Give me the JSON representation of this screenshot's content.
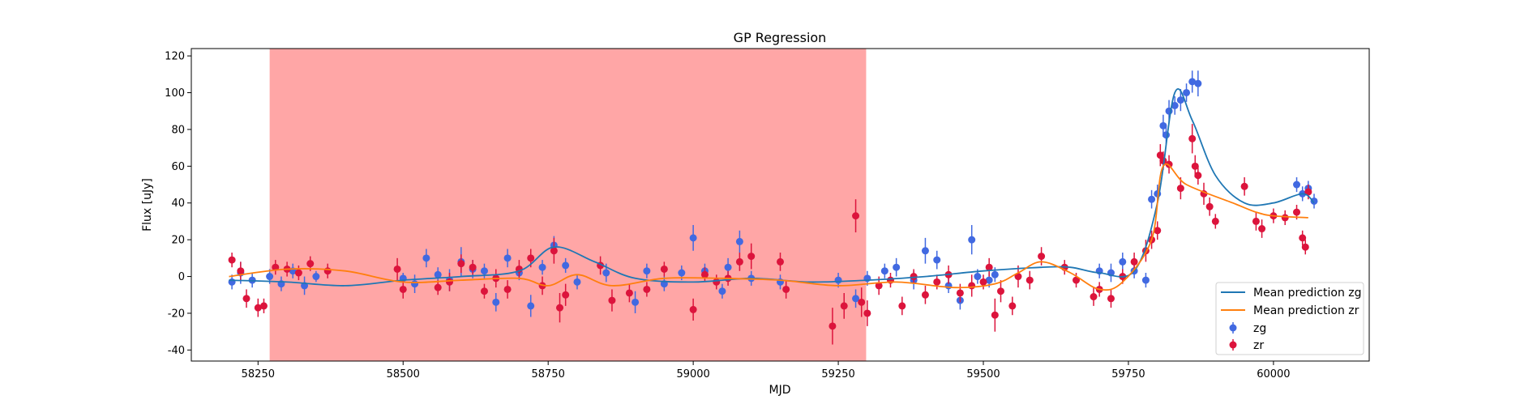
{
  "chart_data": {
    "type": "scatter",
    "title": "GP Regression",
    "xlabel": "MJD",
    "ylabel": "Flux [uJy]",
    "xlim": [
      58135,
      60165
    ],
    "ylim": [
      -46,
      124
    ],
    "xticks": [
      58250,
      58500,
      58750,
      59000,
      59250,
      59500,
      59750,
      60000
    ],
    "yticks": [
      -40,
      -20,
      0,
      20,
      40,
      60,
      80,
      100,
      120
    ],
    "grid": false,
    "legend_position": "lower right",
    "shaded_region": {
      "x_start": 58270,
      "x_end": 59298,
      "color": "#ff0000",
      "alpha": 0.35
    },
    "lines": [
      {
        "name": "Mean prediction zg",
        "color": "#1f77b4",
        "points": [
          [
            58200,
            -2
          ],
          [
            58300,
            -3
          ],
          [
            58400,
            -5
          ],
          [
            58500,
            -2
          ],
          [
            58600,
            0
          ],
          [
            58700,
            3
          ],
          [
            58760,
            16
          ],
          [
            58830,
            8
          ],
          [
            58900,
            -1
          ],
          [
            59000,
            -3
          ],
          [
            59100,
            -1
          ],
          [
            59200,
            -3
          ],
          [
            59300,
            -2
          ],
          [
            59400,
            0
          ],
          [
            59500,
            3
          ],
          [
            59600,
            5
          ],
          [
            59650,
            5
          ],
          [
            59700,
            2
          ],
          [
            59760,
            3
          ],
          [
            59800,
            40
          ],
          [
            59830,
            100
          ],
          [
            59860,
            85
          ],
          [
            59900,
            55
          ],
          [
            59950,
            40
          ],
          [
            60000,
            40
          ],
          [
            60050,
            45
          ],
          [
            60070,
            40
          ]
        ]
      },
      {
        "name": "Mean prediction zr",
        "color": "#ff7f0e",
        "points": [
          [
            58200,
            0
          ],
          [
            58300,
            4
          ],
          [
            58400,
            3
          ],
          [
            58500,
            -3
          ],
          [
            58600,
            -2
          ],
          [
            58700,
            -1
          ],
          [
            58750,
            -5
          ],
          [
            58800,
            1
          ],
          [
            58860,
            -5
          ],
          [
            58950,
            -1
          ],
          [
            59050,
            -1
          ],
          [
            59150,
            -2
          ],
          [
            59250,
            -5
          ],
          [
            59350,
            -3
          ],
          [
            59450,
            -6
          ],
          [
            59520,
            -4
          ],
          [
            59560,
            2
          ],
          [
            59600,
            8
          ],
          [
            59650,
            2
          ],
          [
            59700,
            -7
          ],
          [
            59740,
            -3
          ],
          [
            59790,
            20
          ],
          [
            59810,
            60
          ],
          [
            59850,
            50
          ],
          [
            59930,
            40
          ],
          [
            59970,
            35
          ],
          [
            60000,
            33
          ],
          [
            60060,
            32
          ]
        ]
      }
    ],
    "series": [
      {
        "name": "zg",
        "color": "#4169e1",
        "points": [
          [
            58205,
            -3,
            4
          ],
          [
            58220,
            2,
            6
          ],
          [
            58240,
            -2,
            4
          ],
          [
            58270,
            0,
            4
          ],
          [
            58290,
            -4,
            4
          ],
          [
            58310,
            3,
            4
          ],
          [
            58330,
            -5,
            5
          ],
          [
            58350,
            0,
            3
          ],
          [
            58500,
            -1,
            3
          ],
          [
            58520,
            -4,
            5
          ],
          [
            58540,
            10,
            5
          ],
          [
            58560,
            1,
            4
          ],
          [
            58580,
            -2,
            6
          ],
          [
            58600,
            8,
            8
          ],
          [
            58620,
            4,
            5
          ],
          [
            58640,
            3,
            4
          ],
          [
            58660,
            -14,
            5
          ],
          [
            58680,
            10,
            5
          ],
          [
            58700,
            2,
            4
          ],
          [
            58720,
            -16,
            6
          ],
          [
            58740,
            5,
            4
          ],
          [
            58760,
            17,
            5
          ],
          [
            58780,
            6,
            4
          ],
          [
            58800,
            -3,
            4
          ],
          [
            58850,
            2,
            5
          ],
          [
            58900,
            -14,
            6
          ],
          [
            58920,
            3,
            4
          ],
          [
            58950,
            -4,
            4
          ],
          [
            58980,
            2,
            4
          ],
          [
            59000,
            21,
            7
          ],
          [
            59020,
            3,
            4
          ],
          [
            59050,
            -8,
            4
          ],
          [
            59060,
            5,
            5
          ],
          [
            59080,
            19,
            6
          ],
          [
            59100,
            -1,
            4
          ],
          [
            59150,
            -3,
            4
          ],
          [
            59250,
            -2,
            4
          ],
          [
            59280,
            -12,
            5
          ],
          [
            59300,
            -1,
            4
          ],
          [
            59330,
            3,
            4
          ],
          [
            59350,
            5,
            5
          ],
          [
            59380,
            -2,
            5
          ],
          [
            59400,
            14,
            7
          ],
          [
            59420,
            9,
            5
          ],
          [
            59440,
            -5,
            4
          ],
          [
            59460,
            -13,
            5
          ],
          [
            59480,
            20,
            8
          ],
          [
            59490,
            0,
            4
          ],
          [
            59510,
            -2,
            4
          ],
          [
            59520,
            1,
            4
          ],
          [
            59700,
            3,
            4
          ],
          [
            59720,
            2,
            5
          ],
          [
            59740,
            8,
            5
          ],
          [
            59760,
            3,
            4
          ],
          [
            59780,
            -2,
            4
          ],
          [
            59790,
            42,
            5
          ],
          [
            59800,
            45,
            5
          ],
          [
            59810,
            82,
            6
          ],
          [
            59815,
            77,
            5
          ],
          [
            59820,
            90,
            6
          ],
          [
            59830,
            93,
            5
          ],
          [
            59840,
            96,
            6
          ],
          [
            59850,
            100,
            5
          ],
          [
            59860,
            106,
            6
          ],
          [
            59870,
            105,
            7
          ],
          [
            60040,
            50,
            4
          ],
          [
            60050,
            45,
            4
          ],
          [
            60060,
            48,
            4
          ],
          [
            60070,
            41,
            4
          ]
        ]
      },
      {
        "name": "zr",
        "color": "#dc143c",
        "points": [
          [
            58205,
            9,
            4
          ],
          [
            58220,
            3,
            5
          ],
          [
            58230,
            -12,
            5
          ],
          [
            58250,
            -17,
            5
          ],
          [
            58260,
            -16,
            4
          ],
          [
            58280,
            5,
            4
          ],
          [
            58300,
            4,
            4
          ],
          [
            58320,
            2,
            4
          ],
          [
            58340,
            7,
            4
          ],
          [
            58370,
            3,
            4
          ],
          [
            58490,
            4,
            6
          ],
          [
            58500,
            -7,
            5
          ],
          [
            58560,
            -6,
            4
          ],
          [
            58580,
            -3,
            5
          ],
          [
            58600,
            7,
            5
          ],
          [
            58620,
            5,
            4
          ],
          [
            58640,
            -8,
            4
          ],
          [
            58660,
            -1,
            5
          ],
          [
            58680,
            -7,
            5
          ],
          [
            58700,
            4,
            5
          ],
          [
            58720,
            10,
            5
          ],
          [
            58740,
            -5,
            5
          ],
          [
            58760,
            14,
            7
          ],
          [
            58770,
            -17,
            8
          ],
          [
            58780,
            -10,
            6
          ],
          [
            58840,
            6,
            5
          ],
          [
            58860,
            -13,
            6
          ],
          [
            58890,
            -9,
            5
          ],
          [
            58920,
            -7,
            4
          ],
          [
            58950,
            4,
            4
          ],
          [
            59000,
            -18,
            6
          ],
          [
            59020,
            1,
            4
          ],
          [
            59040,
            -3,
            4
          ],
          [
            59060,
            -1,
            4
          ],
          [
            59080,
            8,
            5
          ],
          [
            59100,
            11,
            7
          ],
          [
            59150,
            8,
            5
          ],
          [
            59160,
            -7,
            5
          ],
          [
            59240,
            -27,
            10
          ],
          [
            59260,
            -16,
            7
          ],
          [
            59280,
            33,
            9
          ],
          [
            59290,
            -14,
            8
          ],
          [
            59300,
            -20,
            7
          ],
          [
            59320,
            -5,
            5
          ],
          [
            59340,
            -2,
            4
          ],
          [
            59360,
            -16,
            5
          ],
          [
            59380,
            0,
            4
          ],
          [
            59400,
            -10,
            5
          ],
          [
            59420,
            -3,
            4
          ],
          [
            59440,
            1,
            5
          ],
          [
            59460,
            -9,
            5
          ],
          [
            59480,
            -5,
            6
          ],
          [
            59500,
            -3,
            4
          ],
          [
            59510,
            5,
            5
          ],
          [
            59520,
            -21,
            9
          ],
          [
            59530,
            -8,
            6
          ],
          [
            59550,
            -16,
            5
          ],
          [
            59560,
            0,
            6
          ],
          [
            59580,
            -2,
            5
          ],
          [
            59600,
            11,
            5
          ],
          [
            59640,
            5,
            4
          ],
          [
            59660,
            -2,
            4
          ],
          [
            59690,
            -11,
            5
          ],
          [
            59700,
            -7,
            4
          ],
          [
            59720,
            -12,
            5
          ],
          [
            59740,
            0,
            4
          ],
          [
            59760,
            8,
            5
          ],
          [
            59780,
            14,
            6
          ],
          [
            59790,
            20,
            5
          ],
          [
            59800,
            25,
            5
          ],
          [
            59805,
            66,
            6
          ],
          [
            59810,
            63,
            5
          ],
          [
            59820,
            61,
            5
          ],
          [
            59840,
            48,
            6
          ],
          [
            59860,
            75,
            8
          ],
          [
            59865,
            60,
            6
          ],
          [
            59870,
            55,
            5
          ],
          [
            59880,
            45,
            6
          ],
          [
            59890,
            38,
            5
          ],
          [
            59900,
            30,
            4
          ],
          [
            59950,
            49,
            5
          ],
          [
            59970,
            30,
            5
          ],
          [
            59980,
            26,
            5
          ],
          [
            60000,
            33,
            4
          ],
          [
            60020,
            32,
            4
          ],
          [
            60040,
            35,
            4
          ],
          [
            60050,
            21,
            4
          ],
          [
            60055,
            16,
            4
          ],
          [
            60060,
            46,
            4
          ]
        ]
      }
    ]
  }
}
